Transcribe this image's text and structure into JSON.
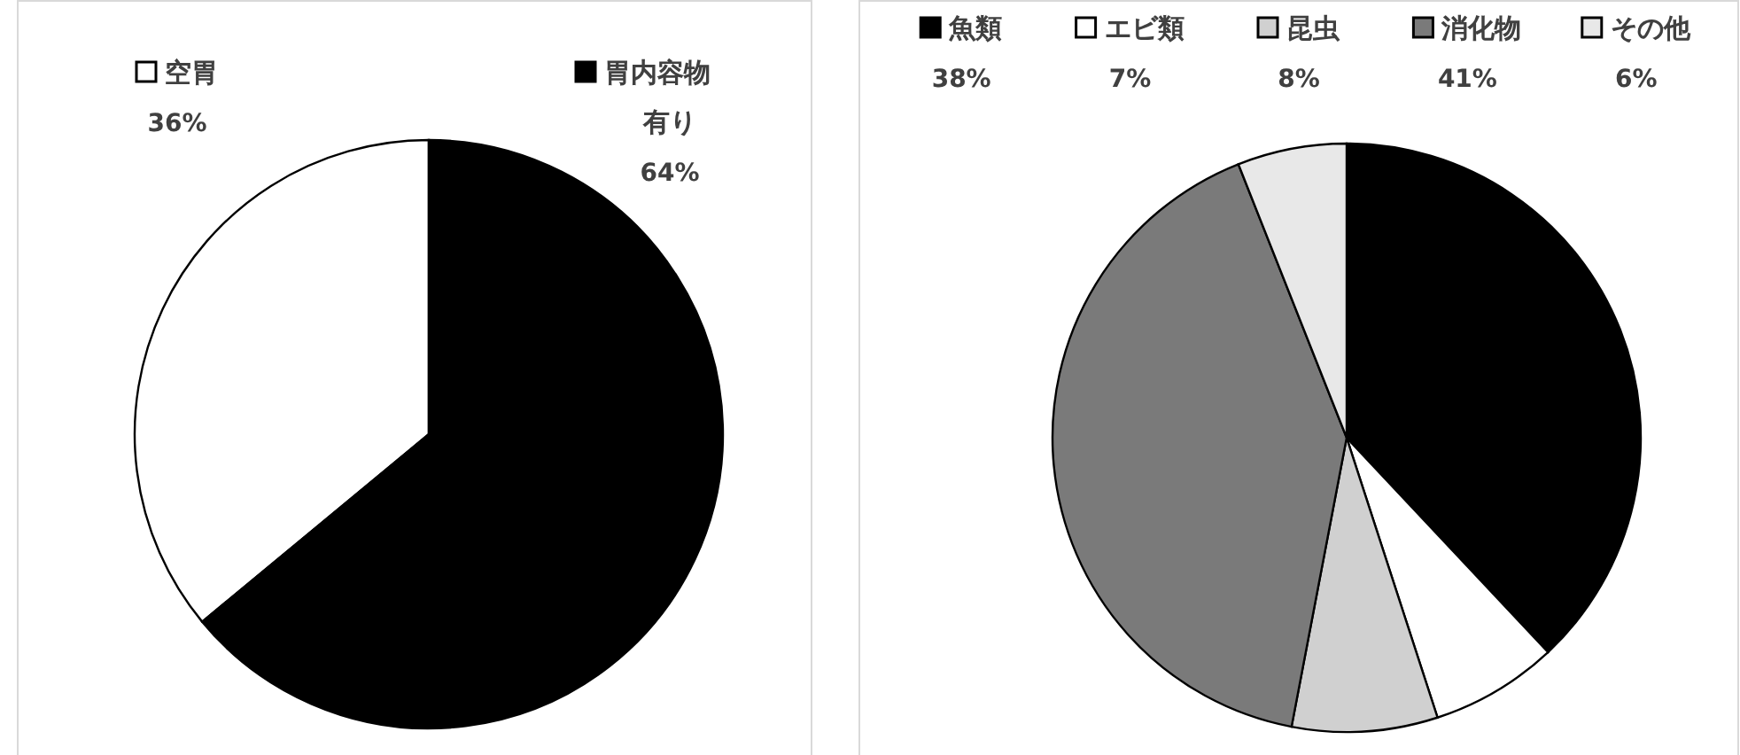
{
  "chart_data": [
    {
      "type": "pie",
      "categories": [
        "空胃",
        "胃内容物有り"
      ],
      "values": [
        36,
        64
      ],
      "colors": [
        "#ffffff",
        "#000000"
      ],
      "value_labels": [
        "36%",
        "64%"
      ],
      "legend": "top"
    },
    {
      "type": "pie",
      "categories": [
        "魚類",
        "エビ類",
        "昆虫",
        "消化物",
        "その他"
      ],
      "values": [
        38,
        7,
        8,
        41,
        6
      ],
      "colors": [
        "#000000",
        "#ffffff",
        "#d0d0d0",
        "#7a7a7a",
        "#e8e8e8"
      ],
      "value_labels": [
        "38%",
        "7%",
        "8%",
        "41%",
        "6%"
      ],
      "legend": "top"
    }
  ]
}
